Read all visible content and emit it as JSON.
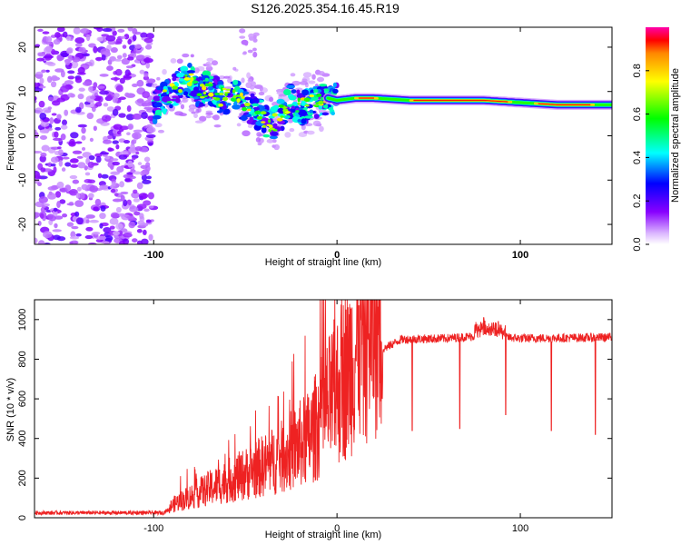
{
  "title": "S126.2025.354.16.45.R19",
  "chart_data": [
    {
      "type": "heatmap",
      "name": "spectrogram",
      "xlabel": "Height of straight line (km)",
      "ylabel": "Frequency (Hz)",
      "xlim": [
        -165,
        150
      ],
      "ylim": [
        -24.5,
        24.5
      ],
      "x_ticks": [
        -100,
        0,
        100
      ],
      "y_ticks": [
        -20,
        -10,
        0,
        10,
        20
      ],
      "colorbar": {
        "label": "Normalized spectral amplitude",
        "range": [
          0,
          1
        ],
        "ticks": [
          0.0,
          0.2,
          0.4,
          0.6,
          0.8
        ],
        "tick_labels": [
          "0.0",
          "0.2",
          "0.4",
          "0.6",
          "0.8"
        ],
        "colors": [
          "#ffffff",
          "#e6ccff",
          "#a200ff",
          "#0000ff",
          "#00ffff",
          "#00ff00",
          "#ffff00",
          "#ff8800",
          "#ff0000"
        ]
      },
      "noise_region_x": [
        -165,
        -100
      ],
      "ridge": [
        {
          "x": -100,
          "y": 6.5
        },
        {
          "x": -95,
          "y": 8
        },
        {
          "x": -90,
          "y": 10
        },
        {
          "x": -85,
          "y": 11.5
        },
        {
          "x": -80,
          "y": 12.5
        },
        {
          "x": -75,
          "y": 10
        },
        {
          "x": -70,
          "y": 11
        },
        {
          "x": -65,
          "y": 9
        },
        {
          "x": -60,
          "y": 8.5
        },
        {
          "x": -55,
          "y": 9
        },
        {
          "x": -50,
          "y": 7
        },
        {
          "x": -45,
          "y": 6
        },
        {
          "x": -40,
          "y": 4
        },
        {
          "x": -36,
          "y": 2
        },
        {
          "x": -30,
          "y": 5
        },
        {
          "x": -25,
          "y": 8
        },
        {
          "x": -20,
          "y": 6
        },
        {
          "x": -15,
          "y": 7
        },
        {
          "x": -10,
          "y": 8
        },
        {
          "x": -5,
          "y": 8.5
        },
        {
          "x": 0,
          "y": 8
        },
        {
          "x": 10,
          "y": 8.5
        },
        {
          "x": 20,
          "y": 8.5
        },
        {
          "x": 40,
          "y": 8
        },
        {
          "x": 60,
          "y": 8
        },
        {
          "x": 80,
          "y": 8
        },
        {
          "x": 100,
          "y": 7.5
        },
        {
          "x": 120,
          "y": 7
        },
        {
          "x": 150,
          "y": 7
        }
      ]
    },
    {
      "type": "line",
      "name": "snr",
      "xlabel": "Height of straight line (km)",
      "ylabel": "SNR (10 * v/v)",
      "xlim": [
        -165,
        150
      ],
      "ylim": [
        0,
        1100
      ],
      "x_ticks": [
        -100,
        0,
        100
      ],
      "y_ticks": [
        0,
        200,
        400,
        600,
        800,
        1000
      ],
      "color": "#ee2222",
      "envelope": [
        {
          "x": -165,
          "y": 25
        },
        {
          "x": -95,
          "y": 25
        },
        {
          "x": -88,
          "y": 60
        },
        {
          "x": -70,
          "y": 120
        },
        {
          "x": -50,
          "y": 180
        },
        {
          "x": -30,
          "y": 250
        },
        {
          "x": -15,
          "y": 330
        },
        {
          "x": -5,
          "y": 460
        },
        {
          "x": 5,
          "y": 600
        },
        {
          "x": 15,
          "y": 760
        },
        {
          "x": 25,
          "y": 850
        },
        {
          "x": 35,
          "y": 900
        },
        {
          "x": 60,
          "y": 905
        },
        {
          "x": 80,
          "y": 920
        },
        {
          "x": 100,
          "y": 905
        },
        {
          "x": 150,
          "y": 910
        }
      ],
      "spikes": [
        {
          "x": -8,
          "y": 1100
        },
        {
          "x": 6,
          "y": 1060
        },
        {
          "x": 12,
          "y": 1070
        },
        {
          "x": 80,
          "y": 1010
        },
        {
          "x": 88,
          "y": 990
        }
      ],
      "dips": [
        {
          "x": 41,
          "y": 440
        },
        {
          "x": 67,
          "y": 450
        },
        {
          "x": 92,
          "y": 520
        },
        {
          "x": 117,
          "y": 440
        },
        {
          "x": 141,
          "y": 420
        }
      ]
    }
  ]
}
